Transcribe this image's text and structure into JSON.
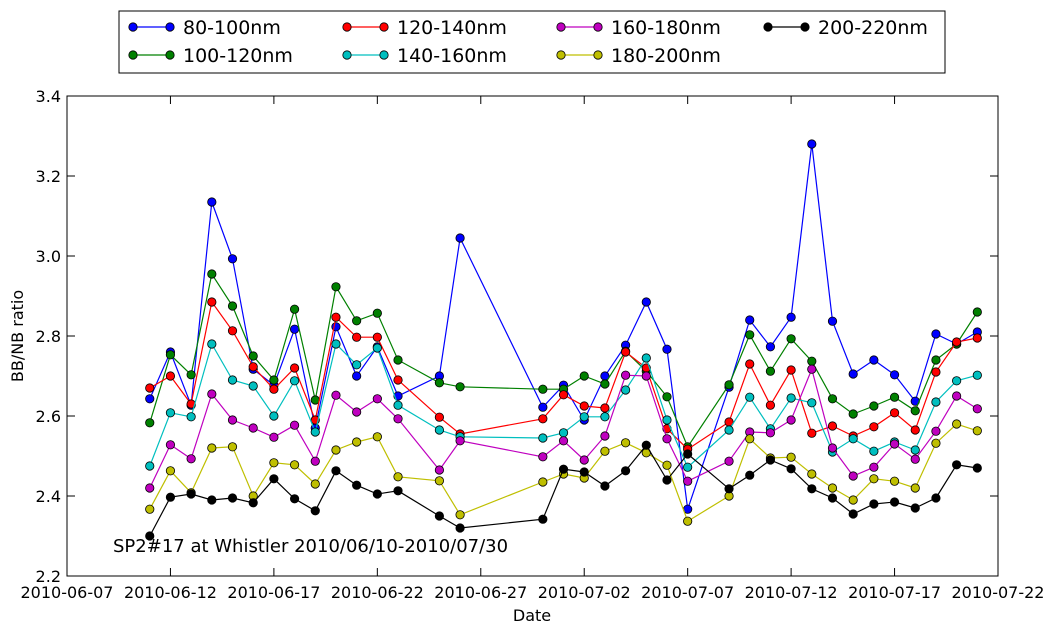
{
  "chart_data": {
    "type": "line",
    "xlabel": "Date",
    "ylabel": "BB/NB ratio",
    "annotation": "SP2#17 at Whistler 2010/06/10-2010/07/30",
    "xlim": [
      "2010-06-07",
      "2010-07-22"
    ],
    "ylim": [
      2.2,
      3.4
    ],
    "x_ticks": [
      "2010-06-07",
      "2010-06-12",
      "2010-06-17",
      "2010-06-22",
      "2010-06-27",
      "2010-07-02",
      "2010-07-07",
      "2010-07-12",
      "2010-07-17",
      "2010-07-22"
    ],
    "y_ticks": [
      2.2,
      2.4,
      2.6,
      2.8,
      3.0,
      3.2,
      3.4
    ],
    "grid": false,
    "legend_position": "top, outside plot",
    "series": [
      {
        "name": "80-100nm",
        "color": "#0000ff",
        "points": [
          [
            "2010-06-11",
            2.643
          ],
          [
            "2010-06-12",
            2.76
          ],
          [
            "2010-06-13",
            2.627
          ],
          [
            "2010-06-14",
            3.135
          ],
          [
            "2010-06-15",
            2.993
          ],
          [
            "2010-06-16",
            2.717
          ],
          [
            "2010-06-17",
            2.677
          ],
          [
            "2010-06-18",
            2.817
          ],
          [
            "2010-06-19",
            2.57
          ],
          [
            "2010-06-20",
            2.823
          ],
          [
            "2010-06-21",
            2.7
          ],
          [
            "2010-06-22",
            2.773
          ],
          [
            "2010-06-23",
            2.65
          ],
          [
            "2010-06-25",
            2.7
          ],
          [
            "2010-06-26",
            3.045
          ],
          [
            "2010-06-30",
            2.622
          ],
          [
            "2010-07-01",
            2.677
          ],
          [
            "2010-07-02",
            2.59
          ],
          [
            "2010-07-03",
            2.7
          ],
          [
            "2010-07-04",
            2.777
          ],
          [
            "2010-07-05",
            2.885
          ],
          [
            "2010-07-06",
            2.767
          ],
          [
            "2010-07-07",
            2.367
          ],
          [
            "2010-07-09",
            2.672
          ],
          [
            "2010-07-10",
            2.84
          ],
          [
            "2010-07-11",
            2.773
          ],
          [
            "2010-07-12",
            2.847
          ],
          [
            "2010-07-13",
            3.28
          ],
          [
            "2010-07-14",
            2.837
          ],
          [
            "2010-07-15",
            2.705
          ],
          [
            "2010-07-16",
            2.74
          ],
          [
            "2010-07-17",
            2.703
          ],
          [
            "2010-07-18",
            2.637
          ],
          [
            "2010-07-19",
            2.805
          ],
          [
            "2010-07-20",
            2.78
          ],
          [
            "2010-07-21",
            2.81
          ]
        ]
      },
      {
        "name": "100-120nm",
        "color": "#008000",
        "points": [
          [
            "2010-06-11",
            2.583
          ],
          [
            "2010-06-12",
            2.753
          ],
          [
            "2010-06-13",
            2.703
          ],
          [
            "2010-06-14",
            2.955
          ],
          [
            "2010-06-15",
            2.875
          ],
          [
            "2010-06-16",
            2.75
          ],
          [
            "2010-06-17",
            2.69
          ],
          [
            "2010-06-18",
            2.867
          ],
          [
            "2010-06-19",
            2.64
          ],
          [
            "2010-06-20",
            2.923
          ],
          [
            "2010-06-21",
            2.838
          ],
          [
            "2010-06-22",
            2.857
          ],
          [
            "2010-06-23",
            2.74
          ],
          [
            "2010-06-25",
            2.683
          ],
          [
            "2010-06-26",
            2.673
          ],
          [
            "2010-06-30",
            2.667
          ],
          [
            "2010-07-01",
            2.667
          ],
          [
            "2010-07-02",
            2.7
          ],
          [
            "2010-07-03",
            2.68
          ],
          [
            "2010-07-04",
            2.762
          ],
          [
            "2010-07-05",
            2.712
          ],
          [
            "2010-07-06",
            2.648
          ],
          [
            "2010-07-07",
            2.523
          ],
          [
            "2010-07-09",
            2.678
          ],
          [
            "2010-07-10",
            2.803
          ],
          [
            "2010-07-11",
            2.712
          ],
          [
            "2010-07-12",
            2.793
          ],
          [
            "2010-07-13",
            2.737
          ],
          [
            "2010-07-14",
            2.643
          ],
          [
            "2010-07-15",
            2.605
          ],
          [
            "2010-07-16",
            2.625
          ],
          [
            "2010-07-17",
            2.647
          ],
          [
            "2010-07-18",
            2.613
          ],
          [
            "2010-07-19",
            2.74
          ],
          [
            "2010-07-20",
            2.78
          ],
          [
            "2010-07-21",
            2.86
          ]
        ]
      },
      {
        "name": "120-140nm",
        "color": "#ff0000",
        "points": [
          [
            "2010-06-11",
            2.67
          ],
          [
            "2010-06-12",
            2.7
          ],
          [
            "2010-06-13",
            2.63
          ],
          [
            "2010-06-14",
            2.885
          ],
          [
            "2010-06-15",
            2.813
          ],
          [
            "2010-06-16",
            2.723
          ],
          [
            "2010-06-17",
            2.667
          ],
          [
            "2010-06-18",
            2.72
          ],
          [
            "2010-06-19",
            2.59
          ],
          [
            "2010-06-20",
            2.847
          ],
          [
            "2010-06-21",
            2.797
          ],
          [
            "2010-06-22",
            2.797
          ],
          [
            "2010-06-23",
            2.69
          ],
          [
            "2010-06-25",
            2.597
          ],
          [
            "2010-06-26",
            2.555
          ],
          [
            "2010-06-30",
            2.593
          ],
          [
            "2010-07-01",
            2.653
          ],
          [
            "2010-07-02",
            2.625
          ],
          [
            "2010-07-03",
            2.62
          ],
          [
            "2010-07-04",
            2.76
          ],
          [
            "2010-07-05",
            2.72
          ],
          [
            "2010-07-06",
            2.568
          ],
          [
            "2010-07-07",
            2.517
          ],
          [
            "2010-07-09",
            2.585
          ],
          [
            "2010-07-10",
            2.73
          ],
          [
            "2010-07-11",
            2.627
          ],
          [
            "2010-07-12",
            2.715
          ],
          [
            "2010-07-13",
            2.557
          ],
          [
            "2010-07-14",
            2.575
          ],
          [
            "2010-07-15",
            2.55
          ],
          [
            "2010-07-16",
            2.573
          ],
          [
            "2010-07-17",
            2.608
          ],
          [
            "2010-07-18",
            2.565
          ],
          [
            "2010-07-19",
            2.71
          ],
          [
            "2010-07-20",
            2.785
          ],
          [
            "2010-07-21",
            2.795
          ]
        ]
      },
      {
        "name": "140-160nm",
        "color": "#00bfbf",
        "points": [
          [
            "2010-06-11",
            2.475
          ],
          [
            "2010-06-12",
            2.608
          ],
          [
            "2010-06-13",
            2.598
          ],
          [
            "2010-06-14",
            2.78
          ],
          [
            "2010-06-15",
            2.69
          ],
          [
            "2010-06-16",
            2.675
          ],
          [
            "2010-06-17",
            2.6
          ],
          [
            "2010-06-18",
            2.688
          ],
          [
            "2010-06-19",
            2.56
          ],
          [
            "2010-06-20",
            2.78
          ],
          [
            "2010-06-21",
            2.728
          ],
          [
            "2010-06-22",
            2.77
          ],
          [
            "2010-06-23",
            2.627
          ],
          [
            "2010-06-25",
            2.565
          ],
          [
            "2010-06-26",
            2.548
          ],
          [
            "2010-06-30",
            2.545
          ],
          [
            "2010-07-01",
            2.558
          ],
          [
            "2010-07-02",
            2.598
          ],
          [
            "2010-07-03",
            2.598
          ],
          [
            "2010-07-04",
            2.665
          ],
          [
            "2010-07-05",
            2.745
          ],
          [
            "2010-07-06",
            2.59
          ],
          [
            "2010-07-07",
            2.472
          ],
          [
            "2010-07-09",
            2.565
          ],
          [
            "2010-07-10",
            2.647
          ],
          [
            "2010-07-11",
            2.568
          ],
          [
            "2010-07-12",
            2.645
          ],
          [
            "2010-07-13",
            2.633
          ],
          [
            "2010-07-14",
            2.51
          ],
          [
            "2010-07-15",
            2.543
          ],
          [
            "2010-07-16",
            2.512
          ],
          [
            "2010-07-17",
            2.535
          ],
          [
            "2010-07-18",
            2.515
          ],
          [
            "2010-07-19",
            2.635
          ],
          [
            "2010-07-20",
            2.688
          ],
          [
            "2010-07-21",
            2.702
          ]
        ]
      },
      {
        "name": "160-180nm",
        "color": "#bf00bf",
        "points": [
          [
            "2010-06-11",
            2.42
          ],
          [
            "2010-06-12",
            2.528
          ],
          [
            "2010-06-13",
            2.493
          ],
          [
            "2010-06-14",
            2.655
          ],
          [
            "2010-06-15",
            2.59
          ],
          [
            "2010-06-16",
            2.57
          ],
          [
            "2010-06-17",
            2.547
          ],
          [
            "2010-06-18",
            2.577
          ],
          [
            "2010-06-19",
            2.487
          ],
          [
            "2010-06-20",
            2.652
          ],
          [
            "2010-06-21",
            2.61
          ],
          [
            "2010-06-22",
            2.643
          ],
          [
            "2010-06-23",
            2.593
          ],
          [
            "2010-06-25",
            2.465
          ],
          [
            "2010-06-26",
            2.538
          ],
          [
            "2010-06-30",
            2.498
          ],
          [
            "2010-07-01",
            2.538
          ],
          [
            "2010-07-02",
            2.49
          ],
          [
            "2010-07-03",
            2.55
          ],
          [
            "2010-07-04",
            2.702
          ],
          [
            "2010-07-05",
            2.7
          ],
          [
            "2010-07-06",
            2.543
          ],
          [
            "2010-07-07",
            2.437
          ],
          [
            "2010-07-09",
            2.487
          ],
          [
            "2010-07-10",
            2.56
          ],
          [
            "2010-07-11",
            2.558
          ],
          [
            "2010-07-12",
            2.59
          ],
          [
            "2010-07-13",
            2.717
          ],
          [
            "2010-07-14",
            2.52
          ],
          [
            "2010-07-15",
            2.45
          ],
          [
            "2010-07-16",
            2.472
          ],
          [
            "2010-07-17",
            2.53
          ],
          [
            "2010-07-18",
            2.492
          ],
          [
            "2010-07-19",
            2.562
          ],
          [
            "2010-07-20",
            2.65
          ],
          [
            "2010-07-21",
            2.618
          ]
        ]
      },
      {
        "name": "180-200nm",
        "color": "#bfbf00",
        "points": [
          [
            "2010-06-11",
            2.367
          ],
          [
            "2010-06-12",
            2.463
          ],
          [
            "2010-06-13",
            2.408
          ],
          [
            "2010-06-14",
            2.52
          ],
          [
            "2010-06-15",
            2.523
          ],
          [
            "2010-06-16",
            2.4
          ],
          [
            "2010-06-17",
            2.483
          ],
          [
            "2010-06-18",
            2.478
          ],
          [
            "2010-06-19",
            2.43
          ],
          [
            "2010-06-20",
            2.515
          ],
          [
            "2010-06-21",
            2.535
          ],
          [
            "2010-06-22",
            2.548
          ],
          [
            "2010-06-23",
            2.448
          ],
          [
            "2010-06-25",
            2.438
          ],
          [
            "2010-06-26",
            2.353
          ],
          [
            "2010-06-30",
            2.435
          ],
          [
            "2010-07-01",
            2.455
          ],
          [
            "2010-07-02",
            2.445
          ],
          [
            "2010-07-03",
            2.512
          ],
          [
            "2010-07-04",
            2.533
          ],
          [
            "2010-07-05",
            2.508
          ],
          [
            "2010-07-06",
            2.477
          ],
          [
            "2010-07-07",
            2.337
          ],
          [
            "2010-07-09",
            2.4
          ],
          [
            "2010-07-10",
            2.543
          ],
          [
            "2010-07-11",
            2.495
          ],
          [
            "2010-07-12",
            2.497
          ],
          [
            "2010-07-13",
            2.455
          ],
          [
            "2010-07-14",
            2.42
          ],
          [
            "2010-07-15",
            2.39
          ],
          [
            "2010-07-16",
            2.443
          ],
          [
            "2010-07-17",
            2.437
          ],
          [
            "2010-07-18",
            2.42
          ],
          [
            "2010-07-19",
            2.532
          ],
          [
            "2010-07-20",
            2.58
          ],
          [
            "2010-07-21",
            2.563
          ]
        ]
      },
      {
        "name": "200-220nm",
        "color": "#000000",
        "points": [
          [
            "2010-06-11",
            2.3
          ],
          [
            "2010-06-12",
            2.397
          ],
          [
            "2010-06-13",
            2.405
          ],
          [
            "2010-06-14",
            2.39
          ],
          [
            "2010-06-15",
            2.395
          ],
          [
            "2010-06-16",
            2.383
          ],
          [
            "2010-06-17",
            2.443
          ],
          [
            "2010-06-18",
            2.393
          ],
          [
            "2010-06-19",
            2.363
          ],
          [
            "2010-06-20",
            2.463
          ],
          [
            "2010-06-21",
            2.427
          ],
          [
            "2010-06-22",
            2.405
          ],
          [
            "2010-06-23",
            2.413
          ],
          [
            "2010-06-25",
            2.35
          ],
          [
            "2010-06-26",
            2.32
          ],
          [
            "2010-06-30",
            2.342
          ],
          [
            "2010-07-01",
            2.467
          ],
          [
            "2010-07-02",
            2.46
          ],
          [
            "2010-07-03",
            2.425
          ],
          [
            "2010-07-04",
            2.463
          ],
          [
            "2010-07-05",
            2.527
          ],
          [
            "2010-07-06",
            2.44
          ],
          [
            "2010-07-07",
            2.505
          ],
          [
            "2010-07-09",
            2.418
          ],
          [
            "2010-07-10",
            2.452
          ],
          [
            "2010-07-11",
            2.49
          ],
          [
            "2010-07-12",
            2.468
          ],
          [
            "2010-07-13",
            2.418
          ],
          [
            "2010-07-14",
            2.395
          ],
          [
            "2010-07-15",
            2.355
          ],
          [
            "2010-07-16",
            2.38
          ],
          [
            "2010-07-17",
            2.385
          ],
          [
            "2010-07-18",
            2.37
          ],
          [
            "2010-07-19",
            2.395
          ],
          [
            "2010-07-20",
            2.478
          ],
          [
            "2010-07-21",
            2.47
          ]
        ]
      }
    ]
  }
}
